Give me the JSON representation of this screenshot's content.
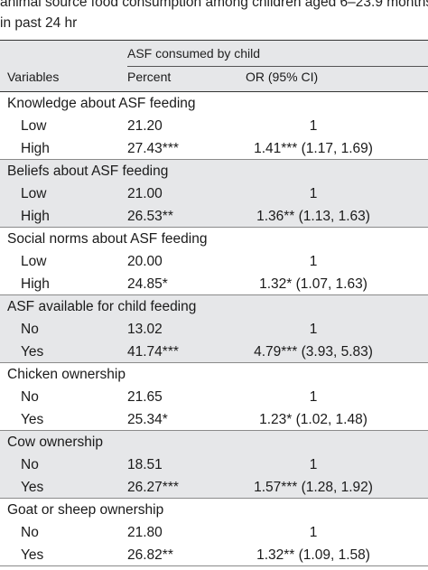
{
  "caption": {
    "line1": "animal source food consumption among children aged 6–23.9 months",
    "line2": "in past 24 hr"
  },
  "header": {
    "group_label": "ASF consumed by child",
    "col_variables": "Variables",
    "col_percent": "Percent",
    "col_or": "OR (95% CI)"
  },
  "sections": [
    {
      "title": "Knowledge about ASF feeding",
      "rows": [
        {
          "label": "Low",
          "percent": "21.20",
          "or": "1"
        },
        {
          "label": "High",
          "percent": "27.43***",
          "or": "1.41*** (1.17, 1.69)"
        }
      ]
    },
    {
      "title": "Beliefs about ASF feeding",
      "rows": [
        {
          "label": "Low",
          "percent": "21.00",
          "or": "1"
        },
        {
          "label": "High",
          "percent": "26.53**",
          "or": "1.36** (1.13, 1.63)"
        }
      ]
    },
    {
      "title": "Social norms about ASF feeding",
      "rows": [
        {
          "label": "Low",
          "percent": "20.00",
          "or": "1"
        },
        {
          "label": "High",
          "percent": "24.85*",
          "or": "1.32* (1.07, 1.63)"
        }
      ]
    },
    {
      "title": "ASF available for child feeding",
      "rows": [
        {
          "label": "No",
          "percent": "13.02",
          "or": "1"
        },
        {
          "label": "Yes",
          "percent": "41.74***",
          "or": "4.79*** (3.93, 5.83)"
        }
      ]
    },
    {
      "title": "Chicken ownership",
      "rows": [
        {
          "label": "No",
          "percent": "21.65",
          "or": "1"
        },
        {
          "label": "Yes",
          "percent": "25.34*",
          "or": "1.23* (1.02, 1.48)"
        }
      ]
    },
    {
      "title": "Cow ownership",
      "rows": [
        {
          "label": "No",
          "percent": "18.51",
          "or": "1"
        },
        {
          "label": "Yes",
          "percent": "26.27***",
          "or": "1.57*** (1.28, 1.92)"
        }
      ]
    },
    {
      "title": "Goat or sheep ownership",
      "rows": [
        {
          "label": "No",
          "percent": "21.80",
          "or": "1"
        },
        {
          "label": "Yes",
          "percent": "26.82**",
          "or": "1.32** (1.09, 1.58)"
        }
      ]
    }
  ]
}
